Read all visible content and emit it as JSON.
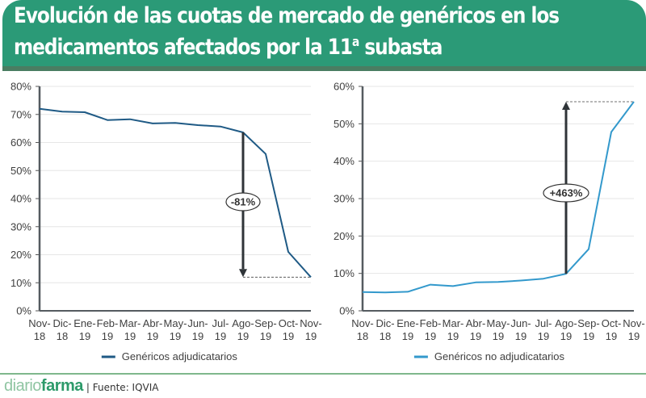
{
  "header": {
    "title_line1": "Evolución de las cuotas de mercado de genéricos en los",
    "title_line2_prefix": "medicamentos afectados por la 11",
    "title_line2_ordinal": "a",
    "title_line2_suffix": " subasta",
    "banner_color": "#2b9a77"
  },
  "footer": {
    "logo_light": "diario",
    "logo_bold": "farma",
    "source": "| Fuente: IQVIA"
  },
  "chart_data": [
    {
      "type": "line",
      "title": "",
      "xlabel": "",
      "ylabel": "",
      "categories": [
        "Nov-18",
        "Dic-18",
        "Ene-19",
        "Feb-19",
        "Mar-19",
        "Abr-19",
        "May-19",
        "Jun-19",
        "Jul-19",
        "Ago-19",
        "Sep-19",
        "Oct-19",
        "Nov-19"
      ],
      "category_lines": [
        [
          "Nov-",
          "18"
        ],
        [
          "Dic-",
          "18"
        ],
        [
          "Ene-",
          "19"
        ],
        [
          "Feb-",
          "19"
        ],
        [
          "Mar-",
          "19"
        ],
        [
          "Abr-",
          "19"
        ],
        [
          "May-",
          "19"
        ],
        [
          "Jun-",
          "19"
        ],
        [
          "Jul-",
          "19"
        ],
        [
          "Ago-",
          "19"
        ],
        [
          "Sep-",
          "19"
        ],
        [
          "Oct-",
          "19"
        ],
        [
          "Nov-",
          "19"
        ]
      ],
      "series": [
        {
          "name": "Genéricos adjudicatarios",
          "color": "#1f5a85",
          "values": [
            72.0,
            71.0,
            70.8,
            68.0,
            68.3,
            66.8,
            67.0,
            66.2,
            65.7,
            63.6,
            55.9,
            21.0,
            12.0
          ]
        }
      ],
      "ylim": [
        0,
        80
      ],
      "yticks": [
        0,
        10,
        20,
        30,
        40,
        50,
        60,
        70,
        80
      ],
      "ytick_labels": [
        "0%",
        "10%",
        "20%",
        "30%",
        "40%",
        "50%",
        "60%",
        "70%",
        "80%"
      ],
      "grid": true,
      "legend": "bottom",
      "annotation": {
        "label": "-81%",
        "from_index": 9,
        "from_value": 63.6,
        "to_value": 12.0,
        "direction": "down"
      }
    },
    {
      "type": "line",
      "title": "",
      "xlabel": "",
      "ylabel": "",
      "categories": [
        "Nov-18",
        "Dic-18",
        "Ene-19",
        "Feb-19",
        "Mar-19",
        "Abr-19",
        "May-19",
        "Jun-19",
        "Jul-19",
        "Ago-19",
        "Sep-19",
        "Oct-19",
        "Nov-19"
      ],
      "category_lines": [
        [
          "Nov-",
          "18"
        ],
        [
          "Dic-",
          "18"
        ],
        [
          "Ene-",
          "19"
        ],
        [
          "Feb-",
          "19"
        ],
        [
          "Mar-",
          "19"
        ],
        [
          "Abr-",
          "19"
        ],
        [
          "May-",
          "19"
        ],
        [
          "Jun-",
          "19"
        ],
        [
          "Jul-",
          "19"
        ],
        [
          "Ago-",
          "19"
        ],
        [
          "Sep-",
          "19"
        ],
        [
          "Oct-",
          "19"
        ],
        [
          "Nov-",
          "19"
        ]
      ],
      "series": [
        {
          "name": "Genéricos no adjudicatarios",
          "color": "#3399cc",
          "values": [
            5.0,
            4.9,
            5.1,
            7.0,
            6.6,
            7.6,
            7.7,
            8.1,
            8.6,
            9.9,
            16.5,
            47.8,
            55.9
          ]
        }
      ],
      "ylim": [
        0,
        60
      ],
      "yticks": [
        0,
        10,
        20,
        30,
        40,
        50,
        60
      ],
      "ytick_labels": [
        "0%",
        "10%",
        "20%",
        "30%",
        "40%",
        "50%",
        "60%"
      ],
      "grid": true,
      "legend": "bottom",
      "annotation": {
        "label": "+463%",
        "from_index": 9,
        "from_value": 9.9,
        "to_value": 55.9,
        "direction": "up"
      }
    }
  ]
}
